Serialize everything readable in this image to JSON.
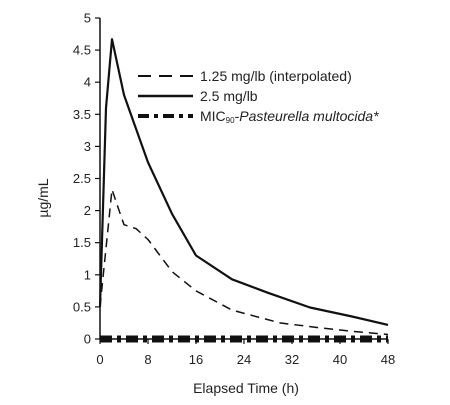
{
  "chart_data": {
    "type": "line",
    "xlabel": "Elapsed Time (h)",
    "ylabel": "µg/mL",
    "xlim": [
      0,
      48
    ],
    "ylim": [
      0,
      5
    ],
    "x_ticks": [
      "0",
      "8",
      "16",
      "24",
      "32",
      "40",
      "48"
    ],
    "y_ticks": [
      "0",
      "0.5",
      "1",
      "1.5",
      "2",
      "2.5",
      "3",
      "3.5",
      "4",
      "4.5",
      "5"
    ],
    "grid": false,
    "legend_position": "top-right",
    "series": [
      {
        "name": "1.25 mg/lb (interpolated)",
        "style": "dashed",
        "x": [
          0,
          2,
          3,
          4,
          6,
          8,
          12,
          16,
          22,
          30,
          36,
          42,
          48
        ],
        "y": [
          0.5,
          2.33,
          2.05,
          1.78,
          1.72,
          1.55,
          1.05,
          0.75,
          0.45,
          0.25,
          0.18,
          0.12,
          0.07
        ]
      },
      {
        "name": "2.5 mg/lb",
        "style": "solid",
        "x": [
          0,
          1,
          2,
          4,
          8,
          12,
          16,
          22,
          28,
          35,
          42,
          48
        ],
        "y": [
          0.5,
          3.6,
          4.67,
          3.8,
          2.75,
          1.95,
          1.3,
          0.93,
          0.72,
          0.49,
          0.35,
          0.22
        ]
      },
      {
        "name_prefix": "MIC",
        "name_subscript": "90",
        "name_organism": "Pasteurella multocida*",
        "name": "MIC90-Pasteurella multocida*",
        "style": "dash-dot",
        "x": [
          0,
          48
        ],
        "y": [
          0.0,
          0.0
        ]
      }
    ]
  }
}
